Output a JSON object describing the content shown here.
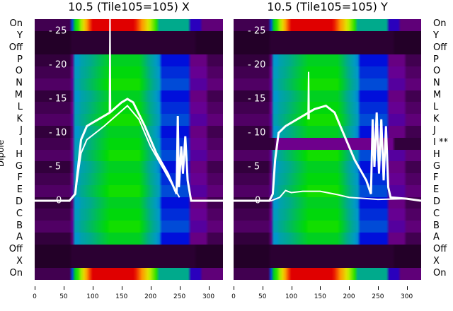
{
  "chart_data": [
    {
      "type": "heatmap",
      "title": "10.5 (Tile105=105) X",
      "ylabel": "Dipole",
      "xlim": [
        0,
        325
      ],
      "x_ticks": [
        "0",
        "50",
        "100",
        "150",
        "200",
        "250",
        "300"
      ],
      "rows": [
        {
          "label": "On",
          "kind": "on"
        },
        {
          "label": "Y",
          "kind": "off"
        },
        {
          "label": "Off",
          "kind": "off"
        },
        {
          "label": "P",
          "kind": "dipole"
        },
        {
          "label": "O",
          "kind": "dipole"
        },
        {
          "label": "N",
          "kind": "dipole"
        },
        {
          "label": "M",
          "kind": "dipole"
        },
        {
          "label": "L",
          "kind": "dipole"
        },
        {
          "label": "K",
          "kind": "dipole"
        },
        {
          "label": "J",
          "kind": "dipole"
        },
        {
          "label": "I",
          "kind": "dipole"
        },
        {
          "label": "H",
          "kind": "dipole"
        },
        {
          "label": "G",
          "kind": "dipole"
        },
        {
          "label": "F",
          "kind": "dipole"
        },
        {
          "label": "E",
          "kind": "dipole"
        },
        {
          "label": "D",
          "kind": "dipole"
        },
        {
          "label": "C",
          "kind": "dipole"
        },
        {
          "label": "B",
          "kind": "dipole"
        },
        {
          "label": "A",
          "kind": "dipole"
        },
        {
          "label": "Off",
          "kind": "off"
        },
        {
          "label": "X",
          "kind": "off"
        },
        {
          "label": "On",
          "kind": "on"
        }
      ],
      "overlay_ylim": [
        0,
        25
      ],
      "overlay_ticks": [
        "0",
        "5",
        "10",
        "15",
        "20",
        "25"
      ],
      "series": [
        {
          "name": "bundle",
          "points": [
            [
              0,
              0
            ],
            [
              60,
              0
            ],
            [
              70,
              1
            ],
            [
              75,
              5
            ],
            [
              80,
              9
            ],
            [
              90,
              11
            ],
            [
              100,
              11.5
            ],
            [
              110,
              12
            ],
            [
              130,
              13
            ],
            [
              150,
              14.5
            ],
            [
              160,
              15
            ],
            [
              170,
              14.5
            ],
            [
              190,
              11
            ],
            [
              210,
              7
            ],
            [
              230,
              4
            ],
            [
              240,
              2
            ],
            [
              245,
              1
            ],
            [
              247,
              12.5
            ],
            [
              249,
              2
            ],
            [
              253,
              8
            ],
            [
              256,
              4
            ],
            [
              260,
              9.5
            ],
            [
              264,
              3
            ],
            [
              270,
              0
            ],
            [
              325,
              0
            ]
          ]
        },
        {
          "name": "lower",
          "points": [
            [
              70,
              1
            ],
            [
              80,
              7
            ],
            [
              90,
              9
            ],
            [
              120,
              11
            ],
            [
              160,
              14
            ],
            [
              180,
              12
            ],
            [
              200,
              8
            ],
            [
              220,
              5
            ],
            [
              240,
              2
            ],
            [
              250,
              0.5
            ]
          ]
        },
        {
          "name": "spike",
          "points": [
            [
              129,
              13
            ],
            [
              130,
              28
            ],
            [
              131,
              13
            ]
          ]
        }
      ]
    },
    {
      "type": "heatmap",
      "title": "10.5 (Tile105=105) Y",
      "xlim": [
        0,
        325
      ],
      "x_ticks": [
        "0",
        "50",
        "100",
        "150",
        "200",
        "250",
        "300"
      ],
      "rows": [
        {
          "label": "On",
          "kind": "on"
        },
        {
          "label": "Y",
          "kind": "off"
        },
        {
          "label": "Off",
          "kind": "off"
        },
        {
          "label": "P",
          "kind": "dipole"
        },
        {
          "label": "O",
          "kind": "dipole"
        },
        {
          "label": "N",
          "kind": "dipole"
        },
        {
          "label": "M",
          "kind": "dipole"
        },
        {
          "label": "L",
          "kind": "dipole"
        },
        {
          "label": "K",
          "kind": "dipole"
        },
        {
          "label": "J",
          "kind": "dipole"
        },
        {
          "label": "I **",
          "kind": "bad"
        },
        {
          "label": "H",
          "kind": "dipole"
        },
        {
          "label": "G",
          "kind": "dipole"
        },
        {
          "label": "F",
          "kind": "dipole"
        },
        {
          "label": "E",
          "kind": "dipole"
        },
        {
          "label": "D",
          "kind": "dipole"
        },
        {
          "label": "C",
          "kind": "dipole"
        },
        {
          "label": "B",
          "kind": "dipole"
        },
        {
          "label": "A",
          "kind": "dipole"
        },
        {
          "label": "Off",
          "kind": "off"
        },
        {
          "label": "X",
          "kind": "off"
        },
        {
          "label": "On",
          "kind": "on"
        }
      ],
      "overlay_ylim": [
        0,
        25
      ],
      "overlay_ticks": [
        "0",
        "5",
        "10",
        "15",
        "20",
        "25"
      ],
      "series": [
        {
          "name": "bundle",
          "points": [
            [
              0,
              0
            ],
            [
              62,
              0
            ],
            [
              68,
              1
            ],
            [
              72,
              6
            ],
            [
              78,
              10
            ],
            [
              90,
              11
            ],
            [
              110,
              12
            ],
            [
              140,
              13.5
            ],
            [
              160,
              14
            ],
            [
              175,
              13
            ],
            [
              190,
              10
            ],
            [
              210,
              6
            ],
            [
              230,
              3
            ],
            [
              238,
              1
            ],
            [
              241,
              12
            ],
            [
              244,
              5
            ],
            [
              248,
              13
            ],
            [
              252,
              4
            ],
            [
              256,
              12
            ],
            [
              260,
              3
            ],
            [
              264,
              11
            ],
            [
              268,
              2
            ],
            [
              272,
              0.5
            ],
            [
              300,
              0.3
            ],
            [
              325,
              0
            ]
          ]
        },
        {
          "name": "baseline",
          "points": [
            [
              0,
              0
            ],
            [
              65,
              0
            ],
            [
              80,
              0.5
            ],
            [
              90,
              1.5
            ],
            [
              100,
              1.2
            ],
            [
              120,
              1.4
            ],
            [
              150,
              1.4
            ],
            [
              180,
              0.9
            ],
            [
              200,
              0.5
            ],
            [
              250,
              0.2
            ],
            [
              300,
              0.3
            ],
            [
              325,
              0
            ]
          ]
        },
        {
          "name": "spike",
          "points": [
            [
              129,
              12
            ],
            [
              130,
              19
            ],
            [
              131,
              12
            ]
          ]
        }
      ]
    }
  ]
}
